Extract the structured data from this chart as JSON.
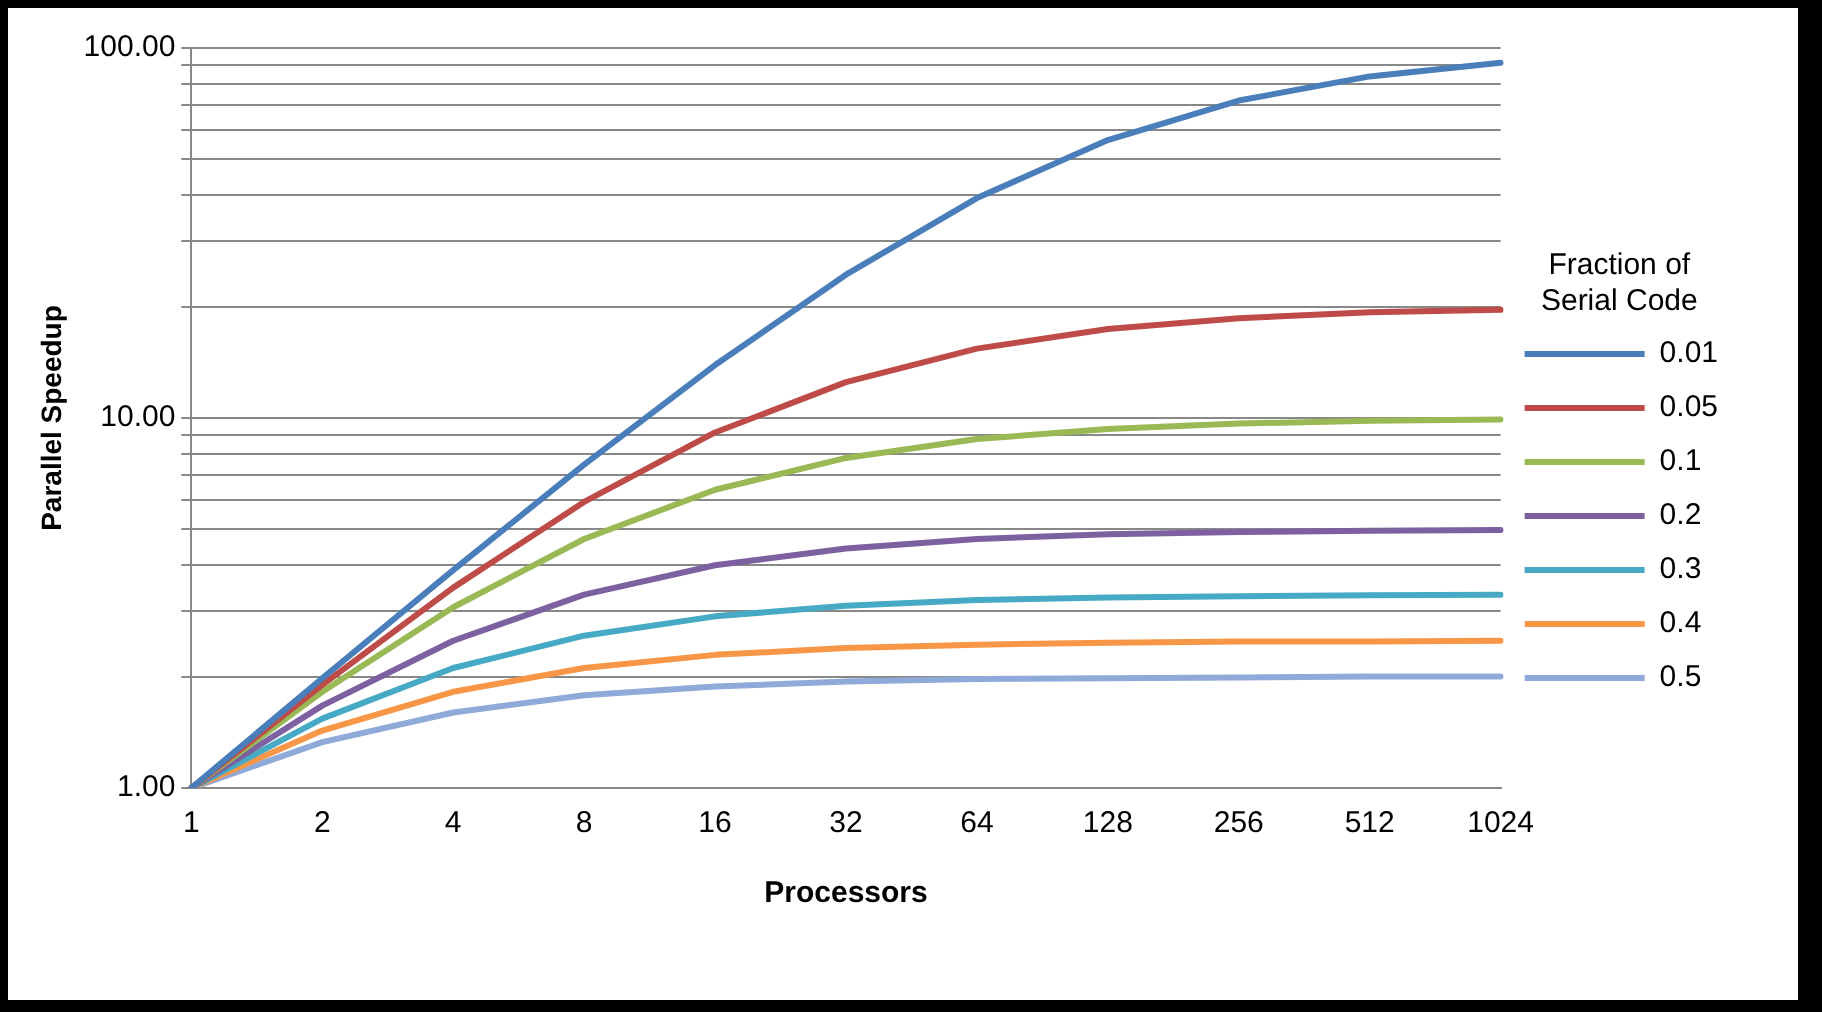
{
  "chart_data": {
    "type": "line",
    "xlabel": "Processors",
    "ylabel": "Parallel Speedup",
    "legend_title": "Fraction of Serial Code",
    "categories": [
      "1",
      "2",
      "4",
      "8",
      "16",
      "32",
      "64",
      "128",
      "256",
      "512",
      "1024"
    ],
    "log": "y",
    "ylim": [
      1,
      100
    ],
    "yticks": [
      {
        "value": 1,
        "label": "1.00"
      },
      {
        "value": 2,
        "label": null
      },
      {
        "value": 3,
        "label": null
      },
      {
        "value": 4,
        "label": null
      },
      {
        "value": 5,
        "label": null
      },
      {
        "value": 6,
        "label": null
      },
      {
        "value": 7,
        "label": null
      },
      {
        "value": 8,
        "label": null
      },
      {
        "value": 9,
        "label": null
      },
      {
        "value": 10,
        "label": "10.00"
      },
      {
        "value": 20,
        "label": null
      },
      {
        "value": 30,
        "label": null
      },
      {
        "value": 40,
        "label": null
      },
      {
        "value": 50,
        "label": null
      },
      {
        "value": 60,
        "label": null
      },
      {
        "value": 70,
        "label": null
      },
      {
        "value": 80,
        "label": null
      },
      {
        "value": 90,
        "label": null
      },
      {
        "value": 100,
        "label": "100.00"
      }
    ],
    "grid": "y",
    "legend": "right",
    "marker": "none",
    "line_style": "solid",
    "series": [
      {
        "name": "0.01",
        "color": "#4a7ebb",
        "values": [
          1,
          1.98,
          3.88,
          7.48,
          13.9,
          24.4,
          39.3,
          56.4,
          72.1,
          83.8,
          91.2
        ]
      },
      {
        "name": "0.05",
        "color": "#be4b48",
        "values": [
          1,
          1.9,
          3.48,
          5.93,
          9.14,
          12.5,
          15.4,
          17.4,
          18.6,
          19.3,
          19.6
        ]
      },
      {
        "name": "0.1",
        "color": "#98b954",
        "values": [
          1,
          1.82,
          3.08,
          4.71,
          6.4,
          7.8,
          8.77,
          9.34,
          9.66,
          9.83,
          9.91
        ]
      },
      {
        "name": "0.2",
        "color": "#7d60a0",
        "values": [
          1,
          1.67,
          2.5,
          3.33,
          4,
          4.44,
          4.71,
          4.85,
          4.92,
          4.96,
          4.98
        ]
      },
      {
        "name": "0.3",
        "color": "#46aac5",
        "values": [
          1,
          1.54,
          2.11,
          2.58,
          2.91,
          3.11,
          3.22,
          3.27,
          3.3,
          3.32,
          3.33
        ]
      },
      {
        "name": "0.4",
        "color": "#f79646",
        "values": [
          1,
          1.43,
          1.82,
          2.11,
          2.29,
          2.39,
          2.44,
          2.47,
          2.49,
          2.49,
          2.5
        ]
      },
      {
        "name": "0.5",
        "color": "#8fa9d8",
        "values": [
          1,
          1.33,
          1.6,
          1.78,
          1.88,
          1.94,
          1.97,
          1.98,
          1.99,
          2,
          2
        ]
      }
    ]
  }
}
